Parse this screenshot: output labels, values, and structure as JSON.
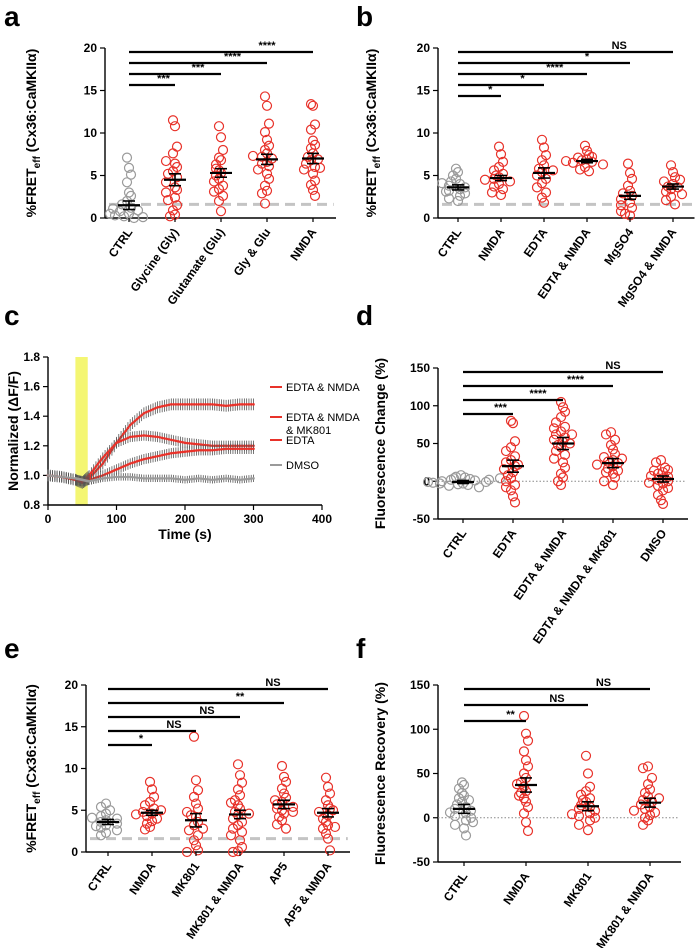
{
  "colors": {
    "red": "#e8322a",
    "gray": "#9a9a9a",
    "black": "#000000",
    "yellow": "#f2f55a",
    "dashed": "#c4c4c4",
    "dotted": "#888888"
  },
  "chart_data": [
    {
      "panel": "a",
      "type": "scatter",
      "ylabel_prefix": "%FRET",
      "ylabel_sub": "eff",
      "ylabel_suffix": " (Cx36:CaMKIIα)",
      "ylim": [
        0,
        20
      ],
      "yticks": [
        0,
        5,
        10,
        15,
        20
      ],
      "baseline": 1.6,
      "categories": [
        "CTRL",
        "Glycine (Gly)",
        "Glutamate (Glu)",
        "Gly & Glu",
        "NMDA"
      ],
      "colors": [
        "gray",
        "red",
        "red",
        "red",
        "red"
      ],
      "means": [
        1.5,
        4.5,
        5.3,
        6.9,
        7.0
      ],
      "sems": [
        0.5,
        0.7,
        0.5,
        0.6,
        0.6
      ],
      "points": [
        [
          7.1,
          5.9,
          5.1,
          4.2,
          3.0,
          2.6,
          2.0,
          1.6,
          1.2,
          0.8,
          0.5,
          0.2,
          0.0,
          0.3,
          0.9,
          1.1,
          0.1,
          0.5
        ],
        [
          11.5,
          10.8,
          8.4,
          7.6,
          6.4,
          6.0,
          5.5,
          5.2,
          4.8,
          4.2,
          3.6,
          3.3,
          3.0,
          2.4,
          1.5,
          0.9,
          0.4,
          0.2,
          6.7,
          2.1
        ],
        [
          10.8,
          9.5,
          8.0,
          7.1,
          6.8,
          6.3,
          5.6,
          5.3,
          5.0,
          4.6,
          4.3,
          3.8,
          3.4,
          3.1,
          2.6,
          2.0,
          0.8,
          5.8
        ],
        [
          14.3,
          13.2,
          11.1,
          10.1,
          9.2,
          8.5,
          8.0,
          7.6,
          7.2,
          7.0,
          6.6,
          6.1,
          5.7,
          5.2,
          4.6,
          3.8,
          3.2,
          2.9,
          1.7,
          7.3,
          6.4
        ],
        [
          13.4,
          13.2,
          11.0,
          10.4,
          9.1,
          8.6,
          8.2,
          7.6,
          7.2,
          6.8,
          6.4,
          6.0,
          5.7,
          5.2,
          4.4,
          3.9,
          3.3,
          2.6,
          6.9,
          5.9
        ]
      ],
      "brackets": [
        {
          "to": 1,
          "label": "***"
        },
        {
          "to": 2,
          "label": "***"
        },
        {
          "to": 3,
          "label": "****"
        },
        {
          "to": 4,
          "label": "****"
        }
      ]
    },
    {
      "panel": "b",
      "type": "scatter",
      "ylabel_prefix": "%FRET",
      "ylabel_sub": "eff",
      "ylabel_suffix": " (Cx36:CaMKIIα)",
      "ylim": [
        0,
        20
      ],
      "yticks": [
        0,
        5,
        10,
        15,
        20
      ],
      "baseline": 1.6,
      "categories": [
        "CTRL",
        "NMDA",
        "EDTA",
        "EDTA & NMDA",
        "MgSO4",
        "MgSO4 & NMDA"
      ],
      "colors": [
        "gray",
        "red",
        "red",
        "red",
        "red",
        "red"
      ],
      "means": [
        3.6,
        4.7,
        5.3,
        6.7,
        2.6,
        3.7
      ],
      "sems": [
        0.3,
        0.3,
        0.6,
        0.2,
        0.4,
        0.3
      ],
      "points": [
        [
          5.8,
          5.4,
          5.0,
          4.6,
          4.3,
          4.0,
          3.8,
          3.6,
          3.4,
          3.2,
          2.9,
          2.6,
          2.3,
          2.0,
          3.1,
          4.1
        ],
        [
          8.4,
          7.5,
          6.6,
          6.0,
          5.6,
          5.2,
          4.8,
          4.6,
          4.3,
          4.0,
          3.7,
          3.4,
          3.0,
          2.7,
          5.0,
          4.5
        ],
        [
          9.2,
          8.3,
          7.4,
          6.8,
          6.2,
          5.8,
          5.4,
          5.0,
          4.6,
          4.1,
          3.6,
          3.0,
          2.4,
          1.8,
          5.6
        ],
        [
          8.5,
          7.9,
          7.4,
          7.1,
          6.9,
          6.8,
          6.6,
          6.5,
          6.3,
          6.0,
          5.7,
          5.5,
          7.2,
          6.7
        ],
        [
          6.4,
          5.3,
          4.6,
          3.8,
          3.2,
          2.6,
          2.2,
          1.8,
          1.2,
          0.8,
          0.3,
          0.5,
          1.5,
          2.9
        ],
        [
          6.2,
          5.4,
          4.8,
          4.3,
          4.0,
          3.7,
          3.4,
          3.1,
          2.8,
          2.5,
          2.1,
          1.6,
          3.6,
          4.5
        ]
      ],
      "brackets": [
        {
          "to": 1,
          "label": "*"
        },
        {
          "to": 2,
          "label": "*"
        },
        {
          "to": 3,
          "label": "****"
        },
        {
          "to": 4,
          "label": "*"
        },
        {
          "to": 5,
          "label": "NS"
        }
      ]
    },
    {
      "panel": "c",
      "type": "line",
      "ylabel": "Normalized (ΔF/F)",
      "xlabel": "Time (s)",
      "xlim": [
        0,
        400
      ],
      "ylim": [
        0.8,
        1.8
      ],
      "xticks": [
        0,
        100,
        200,
        300,
        400
      ],
      "yticks": [
        0.8,
        1.0,
        1.2,
        1.4,
        1.6,
        1.8
      ],
      "stimulus_window": [
        40,
        58
      ],
      "legend": [
        "EDTA & NMDA",
        "EDTA & NMDA & MK801",
        "EDTA",
        "DMSO"
      ],
      "legend_colors": [
        "red",
        "red",
        "red",
        "gray"
      ],
      "series": [
        {
          "name": "EDTA & NMDA",
          "x": [
            0,
            20,
            40,
            50,
            60,
            80,
            100,
            120,
            140,
            160,
            180,
            200,
            220,
            240,
            260,
            280,
            300
          ],
          "y": [
            1.0,
            0.99,
            0.97,
            0.95,
            0.98,
            1.08,
            1.22,
            1.34,
            1.42,
            1.46,
            1.48,
            1.48,
            1.48,
            1.48,
            1.47,
            1.48,
            1.48
          ],
          "err": 0.04
        },
        {
          "name": "EDTA & NMDA & MK801",
          "x": [
            0,
            20,
            40,
            50,
            60,
            80,
            100,
            120,
            140,
            160,
            180,
            200,
            220,
            240,
            260,
            280,
            300
          ],
          "y": [
            1.0,
            0.99,
            0.97,
            0.96,
            1.0,
            1.12,
            1.22,
            1.26,
            1.27,
            1.26,
            1.24,
            1.22,
            1.21,
            1.2,
            1.2,
            1.2,
            1.2
          ],
          "err": 0.035
        },
        {
          "name": "EDTA",
          "x": [
            0,
            20,
            40,
            50,
            60,
            80,
            100,
            120,
            140,
            160,
            180,
            200,
            220,
            240,
            260,
            280,
            300
          ],
          "y": [
            1.0,
            0.99,
            0.97,
            0.96,
            0.97,
            1.0,
            1.04,
            1.08,
            1.11,
            1.13,
            1.15,
            1.16,
            1.17,
            1.17,
            1.18,
            1.18,
            1.18
          ],
          "err": 0.035
        },
        {
          "name": "DMSO",
          "x": [
            0,
            20,
            40,
            50,
            60,
            80,
            100,
            120,
            140,
            160,
            180,
            200,
            220,
            240,
            260,
            280,
            300
          ],
          "y": [
            1.0,
            0.99,
            0.98,
            0.97,
            0.96,
            0.98,
            0.99,
            0.99,
            0.98,
            0.98,
            0.98,
            0.97,
            0.98,
            0.97,
            0.98,
            0.97,
            0.98
          ],
          "err": 0.025
        }
      ]
    },
    {
      "panel": "d",
      "type": "scatter",
      "ylabel": "Fluorescence Change (%)",
      "ylim": [
        -50,
        150
      ],
      "yticks": [
        -50,
        0,
        50,
        100,
        150
      ],
      "zeroline": true,
      "categories": [
        "CTRL",
        "EDTA",
        "EDTA & NMDA",
        "EDTA & NMDA & MK801",
        "DMSO"
      ],
      "colors": [
        "gray",
        "red",
        "red",
        "red",
        "red"
      ],
      "means": [
        -1,
        20,
        50,
        24,
        3
      ],
      "sems": [
        2,
        8,
        8,
        6,
        4
      ],
      "points": [
        [
          8,
          6,
          5,
          4,
          3,
          2,
          1,
          0,
          -1,
          -2,
          -3,
          -4,
          -5,
          -6,
          -8,
          2,
          -1,
          4,
          -3
        ],
        [
          80,
          77,
          53,
          45,
          40,
          33,
          28,
          25,
          20,
          16,
          12,
          8,
          4,
          0,
          -5,
          -12,
          -20,
          -28,
          22,
          -8
        ],
        [
          105,
          98,
          92,
          85,
          78,
          72,
          66,
          62,
          58,
          55,
          52,
          48,
          45,
          40,
          35,
          30,
          25,
          18,
          10,
          5,
          0,
          -5,
          50,
          62,
          70
        ],
        [
          65,
          62,
          55,
          48,
          42,
          36,
          32,
          28,
          26,
          24,
          20,
          17,
          14,
          10,
          5,
          0,
          -5,
          30,
          22,
          12
        ],
        [
          28,
          25,
          18,
          14,
          12,
          10,
          6,
          4,
          2,
          0,
          -3,
          -6,
          -9,
          -12,
          -18,
          -25,
          -30,
          7,
          15,
          -2
        ]
      ],
      "brackets": [
        {
          "to": 1,
          "label": "***"
        },
        {
          "to": 2,
          "label": "****"
        },
        {
          "to": 3,
          "label": "****"
        },
        {
          "to": 4,
          "label": "NS"
        }
      ]
    },
    {
      "panel": "e",
      "type": "scatter",
      "ylabel_prefix": "%FRET",
      "ylabel_sub": "eff",
      "ylabel_suffix": " (Cx36:CaMKIIα)",
      "ylim": [
        0,
        20
      ],
      "yticks": [
        0,
        5,
        10,
        15,
        20
      ],
      "baseline": 1.6,
      "categories": [
        "CTRL",
        "NMDA",
        "MK801",
        "MK801 & NMDA",
        "AP5",
        "AP5 & NMDA"
      ],
      "colors": [
        "gray",
        "red",
        "red",
        "red",
        "red",
        "red"
      ],
      "means": [
        3.6,
        4.7,
        3.8,
        4.5,
        5.7,
        4.7
      ],
      "sems": [
        0.3,
        0.3,
        0.8,
        0.5,
        0.5,
        0.5
      ],
      "points": [
        [
          5.8,
          5.4,
          5.0,
          4.6,
          4.3,
          4.0,
          3.8,
          3.6,
          3.4,
          3.2,
          2.9,
          2.6,
          2.3,
          2.0,
          3.1,
          4.1
        ],
        [
          8.4,
          7.5,
          6.6,
          6.0,
          5.6,
          5.2,
          4.8,
          4.6,
          4.3,
          4.0,
          3.7,
          3.4,
          3.0,
          2.7,
          5.0,
          4.5
        ],
        [
          13.8,
          8.6,
          7.4,
          6.6,
          5.8,
          5.2,
          4.8,
          4.2,
          3.6,
          3.2,
          2.6,
          2.0,
          1.4,
          0.8,
          0.2,
          0.0,
          2.8,
          4.4
        ],
        [
          10.5,
          9.2,
          8.3,
          7.5,
          6.8,
          6.2,
          5.6,
          5.2,
          4.8,
          4.4,
          4.0,
          3.6,
          3.2,
          2.8,
          2.4,
          2.0,
          1.4,
          0.6,
          0.1,
          0.0,
          4.6,
          5.9
        ],
        [
          10.3,
          9.0,
          8.4,
          7.6,
          7.0,
          6.5,
          6.0,
          5.7,
          5.4,
          5.0,
          4.6,
          4.2,
          3.8,
          3.3,
          2.8,
          6.2,
          5.2,
          4.8
        ],
        [
          8.9,
          7.8,
          7.0,
          6.2,
          5.6,
          5.2,
          4.8,
          4.4,
          4.0,
          3.6,
          3.2,
          2.8,
          2.2,
          1.6,
          0.2,
          5.0,
          3.0
        ]
      ],
      "brackets": [
        {
          "to": 1,
          "label": "*"
        },
        {
          "to": 2,
          "label": "NS"
        },
        {
          "to": 3,
          "label": "NS"
        },
        {
          "to": 4,
          "label": "**"
        },
        {
          "to": 5,
          "label": "NS"
        }
      ]
    },
    {
      "panel": "f",
      "type": "scatter",
      "ylabel": "Fluorescence Recovery (%)",
      "ylim": [
        -50,
        150
      ],
      "yticks": [
        -50,
        0,
        50,
        100,
        150
      ],
      "zeroline": true,
      "categories": [
        "CTRL",
        "NMDA",
        "MK801",
        "MK801 & NMDA"
      ],
      "colors": [
        "gray",
        "red",
        "red",
        "red"
      ],
      "means": [
        10,
        37,
        13,
        17
      ],
      "sems": [
        5,
        8,
        5,
        5
      ],
      "points": [
        [
          40,
          37,
          33,
          28,
          25,
          22,
          18,
          15,
          12,
          10,
          8,
          5,
          2,
          0,
          -3,
          -8,
          -12,
          -20,
          20,
          6,
          -5
        ],
        [
          115,
          95,
          87,
          75,
          65,
          58,
          50,
          45,
          40,
          35,
          30,
          28,
          22,
          18,
          12,
          5,
          -5,
          -15,
          38,
          25
        ],
        [
          70,
          50,
          35,
          30,
          26,
          22,
          18,
          14,
          12,
          10,
          8,
          5,
          2,
          0,
          -3,
          -8,
          -14,
          20,
          4
        ],
        [
          58,
          56,
          45,
          38,
          32,
          28,
          24,
          20,
          18,
          15,
          12,
          10,
          6,
          3,
          0,
          -3,
          -8,
          22,
          8
        ]
      ],
      "brackets": [
        {
          "to": 1,
          "label": "**"
        },
        {
          "to": 2,
          "label": "NS"
        },
        {
          "to": 3,
          "label": "NS"
        }
      ]
    }
  ]
}
